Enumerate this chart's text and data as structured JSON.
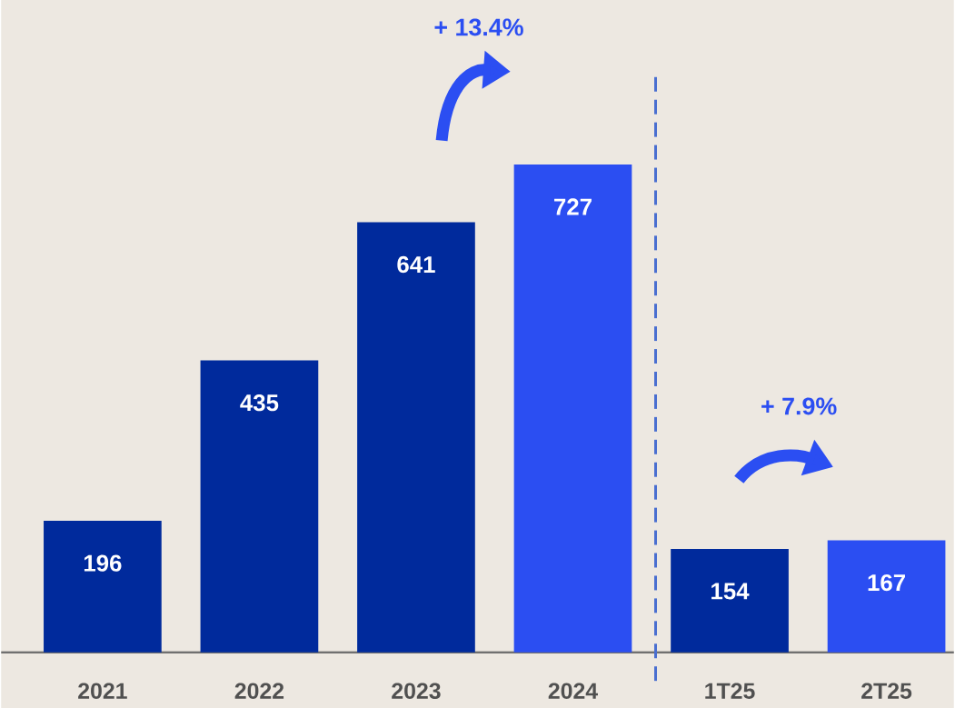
{
  "chart_data": {
    "type": "bar",
    "categories": [
      "2021",
      "2022",
      "2023",
      "2024",
      "1T25",
      "2T25"
    ],
    "values": [
      196,
      435,
      641,
      727,
      154,
      167
    ],
    "colors": [
      "#002a9c",
      "#002a9c",
      "#002a9c",
      "#2b4ef2",
      "#002a9c",
      "#2b4ef2"
    ],
    "data_labels": true,
    "annotations": [
      "+ 13.4%",
      "+ 7.9%"
    ]
  }
}
